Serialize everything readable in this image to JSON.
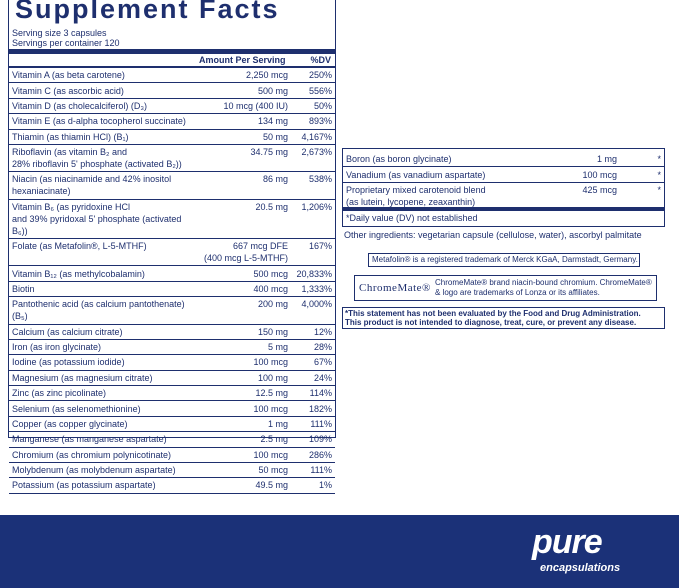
{
  "header": {
    "title": "Supplement Facts",
    "serving_size": "Serving size  3 capsules",
    "servings_per_container": "Servings per container  120"
  },
  "table": {
    "columns": [
      "Amount Per Serving",
      "%DV"
    ],
    "rows": [
      {
        "name": [
          "Vitamin A (as beta carotene)"
        ],
        "amount": [
          "2,250 mcg"
        ],
        "dv": "250%"
      },
      {
        "name": [
          "Vitamin C (as ascorbic acid)"
        ],
        "amount": [
          "500 mg"
        ],
        "dv": "556%"
      },
      {
        "name": [
          "Vitamin D (as cholecalciferol) (D₃)"
        ],
        "amount": [
          "10 mcg (400 IU)"
        ],
        "dv": "50%"
      },
      {
        "name": [
          "Vitamin E (as d-alpha tocopherol succinate)"
        ],
        "amount": [
          "134 mg"
        ],
        "dv": "893%"
      },
      {
        "name": [
          "Thiamin (as thiamin HCl) (B₁)"
        ],
        "amount": [
          "50 mg"
        ],
        "dv": "4,167%"
      },
      {
        "name": [
          "Riboflavin (as vitamin B₂ and",
          "28% riboflavin 5' phosphate (activated B₂))"
        ],
        "amount": [
          "34.75 mg"
        ],
        "dv": "2,673%"
      },
      {
        "name": [
          "Niacin (as niacinamide and 42% inositol hexaniacinate)"
        ],
        "amount": [
          "86 mg"
        ],
        "dv": "538%"
      },
      {
        "name": [
          "Vitamin B₆ (as pyridoxine HCl",
          "and 39% pyridoxal 5' phosphate (activated B₆))"
        ],
        "amount": [
          "20.5 mg"
        ],
        "dv": "1,206%"
      },
      {
        "name": [
          "Folate (as Metafolin®, L-5-MTHF)"
        ],
        "amount": [
          "667 mcg DFE",
          "(400 mcg L-5-MTHF)"
        ],
        "dv": "167%"
      },
      {
        "name": [
          "Vitamin B₁₂ (as methylcobalamin)"
        ],
        "amount": [
          "500 mcg"
        ],
        "dv": "20,833%"
      },
      {
        "name": [
          "Biotin"
        ],
        "amount": [
          "400 mcg"
        ],
        "dv": "1,333%"
      },
      {
        "name": [
          "Pantothenic acid (as calcium pantothenate) (B₅)"
        ],
        "amount": [
          "200 mg"
        ],
        "dv": "4,000%"
      },
      {
        "name": [
          "Calcium (as calcium citrate)"
        ],
        "amount": [
          "150 mg"
        ],
        "dv": "12%"
      },
      {
        "name": [
          "Iron (as iron glycinate)"
        ],
        "amount": [
          "5 mg"
        ],
        "dv": "28%"
      },
      {
        "name": [
          "Iodine (as potassium iodide)"
        ],
        "amount": [
          "100 mcg"
        ],
        "dv": "67%"
      },
      {
        "name": [
          "Magnesium (as magnesium citrate)"
        ],
        "amount": [
          "100 mg"
        ],
        "dv": "24%"
      },
      {
        "name": [
          "Zinc (as zinc picolinate)"
        ],
        "amount": [
          "12.5 mg"
        ],
        "dv": "114%"
      },
      {
        "name": [
          "Selenium (as selenomethionine)"
        ],
        "amount": [
          "100 mcg"
        ],
        "dv": "182%"
      },
      {
        "name": [
          "Copper (as copper glycinate)"
        ],
        "amount": [
          "1 mg"
        ],
        "dv": "111%"
      },
      {
        "name": [
          "Manganese (as manganese aspartate)"
        ],
        "amount": [
          "2.5 mg"
        ],
        "dv": "109%"
      },
      {
        "name": [
          "Chromium (as chromium polynicotinate)"
        ],
        "amount": [
          "100 mcg"
        ],
        "dv": "286%"
      },
      {
        "name": [
          "Molybdenum (as molybdenum aspartate)"
        ],
        "amount": [
          "50 mcg"
        ],
        "dv": "111%"
      },
      {
        "name": [
          "Potassium (as potassium aspartate)"
        ],
        "amount": [
          "49.5 mg"
        ],
        "dv": "1%"
      }
    ]
  },
  "table_continued": {
    "rows": [
      {
        "name": [
          "Boron (as boron glycinate)"
        ],
        "amount": [
          "1 mg"
        ],
        "dv": "*"
      },
      {
        "name": [
          "Vanadium (as vanadium aspartate)"
        ],
        "amount": [
          "100 mcg"
        ],
        "dv": "*"
      },
      {
        "name": [
          "Proprietary mixed carotenoid blend",
          "(as lutein, lycopene, zeaxanthin)"
        ],
        "amount": [
          "425 mcg"
        ],
        "dv": "*"
      }
    ],
    "footnote": "*Daily value (DV) not established"
  },
  "other_ingredients": "Other ingredients: vegetarian capsule (cellulose, water), ascorbyl palmitate",
  "metafolin_note": "Metafolin® is a registered trademark of Merck KGaA, Darmstadt, Germany.",
  "chromemate": {
    "logo": "ChromeMate®",
    "note": [
      "ChromeMate® brand niacin-bound chromium. ChromeMate®",
      "& logo are trademarks of Lonza or its affiliates."
    ]
  },
  "disclaimer": [
    "*This statement has not been evaluated by the Food and Drug Administration.",
    "This product is not intended to diagnose, treat, cure, or prevent any disease."
  ],
  "brand": {
    "name": "pure",
    "tagline": "encapsulations"
  }
}
